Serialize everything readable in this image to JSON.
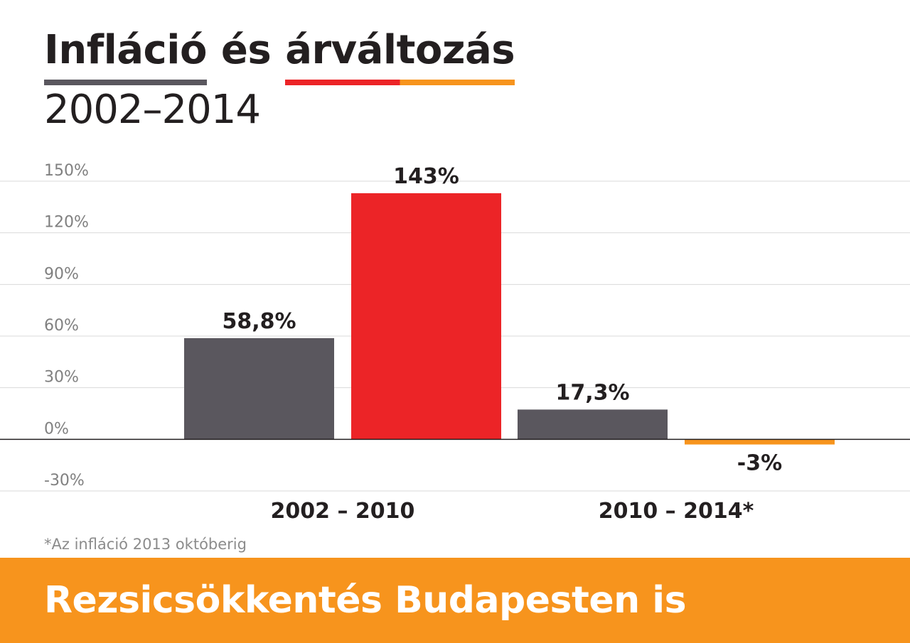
{
  "title": {
    "words": [
      {
        "text": "Infláció",
        "underline_colors": [
          "#5a575e"
        ]
      },
      {
        "text": "és",
        "underline_colors": []
      },
      {
        "text": "árváltozás",
        "underline_colors": [
          "#ec2427",
          "#f7941d"
        ]
      }
    ],
    "subtitle": "2002–2014"
  },
  "chart_data": {
    "type": "bar",
    "categories": [
      "2002 – 2010",
      "2010 – 2014*"
    ],
    "series": [
      {
        "values": [
          58.8,
          17.3
        ],
        "labels": [
          "58,8%",
          "17,3%"
        ],
        "colors": [
          "#5a575e",
          "#5a575e"
        ]
      },
      {
        "values": [
          143,
          -3
        ],
        "labels": [
          "143%",
          "-3%"
        ],
        "colors": [
          "#ec2427",
          "#f7941d"
        ]
      }
    ],
    "ylim": [
      -30,
      150
    ],
    "yticks": [
      150,
      120,
      90,
      60,
      30,
      0,
      -30
    ],
    "ytick_labels": [
      "150%",
      "120%",
      "90%",
      "60%",
      "30%",
      "0%",
      "-30%"
    ],
    "grid": true
  },
  "footnote": "*Az infláció 2013 októberig",
  "banner": {
    "text": "Rezsicsökkentés Budapesten is",
    "color": "#f7941d"
  },
  "colors": {
    "gridline": "#d9d9d9",
    "zero_line": "#231f20",
    "tick_text": "#808080",
    "label_text": "#231f20"
  }
}
